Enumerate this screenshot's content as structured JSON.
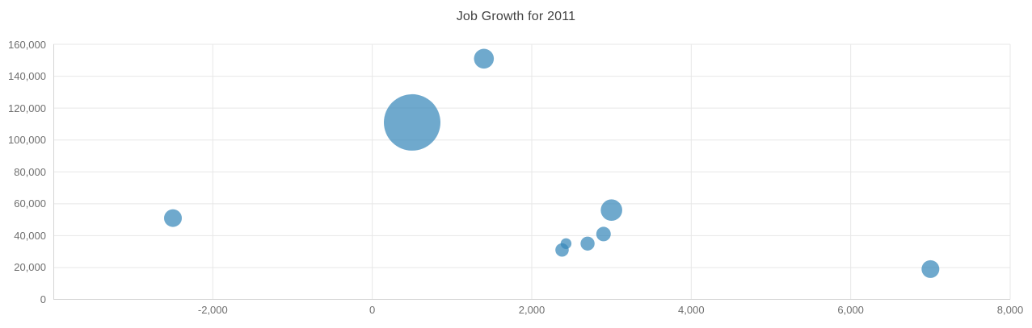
{
  "title": "Job Growth for 2011",
  "colors": {
    "background": "#ffffff",
    "bubble_fill": "#3788ba",
    "bubble_opacity": 0.72,
    "gridline": "#e7e7e7",
    "axis_line": "#d5d5d5",
    "title_text": "#414141",
    "tick_text": "#6f6f6f"
  },
  "chart_data": {
    "type": "scatter",
    "subtype": "bubble",
    "title": "Job Growth for 2011",
    "xlabel": "",
    "ylabel": "",
    "xlim": [
      -4000,
      8000
    ],
    "ylim": [
      0,
      160000
    ],
    "grid": true,
    "legend": false,
    "x_ticks": [
      -2000,
      0,
      2000,
      4000,
      6000,
      8000
    ],
    "x_tick_labels": [
      "-2,000",
      "0",
      "2,000",
      "4,000",
      "6,000",
      "8,000"
    ],
    "y_ticks": [
      0,
      20000,
      40000,
      60000,
      80000,
      100000,
      120000,
      140000,
      160000
    ],
    "y_tick_labels": [
      "0",
      "20,000",
      "40,000",
      "60,000",
      "80,000",
      "100,000",
      "120,000",
      "140,000",
      "160,000"
    ],
    "points": [
      {
        "x": 500,
        "y": 111000,
        "r": 35
      },
      {
        "x": 1400,
        "y": 151000,
        "r": 12.3
      },
      {
        "x": -2500,
        "y": 51000,
        "r": 11
      },
      {
        "x": 3000,
        "y": 56000,
        "r": 13.3
      },
      {
        "x": 2900,
        "y": 41000,
        "r": 9
      },
      {
        "x": 2700,
        "y": 35000,
        "r": 8.7
      },
      {
        "x": 2430,
        "y": 35000,
        "r": 6.7
      },
      {
        "x": 2380,
        "y": 31000,
        "r": 8.3
      },
      {
        "x": 7000,
        "y": 19000,
        "r": 11
      }
    ]
  }
}
